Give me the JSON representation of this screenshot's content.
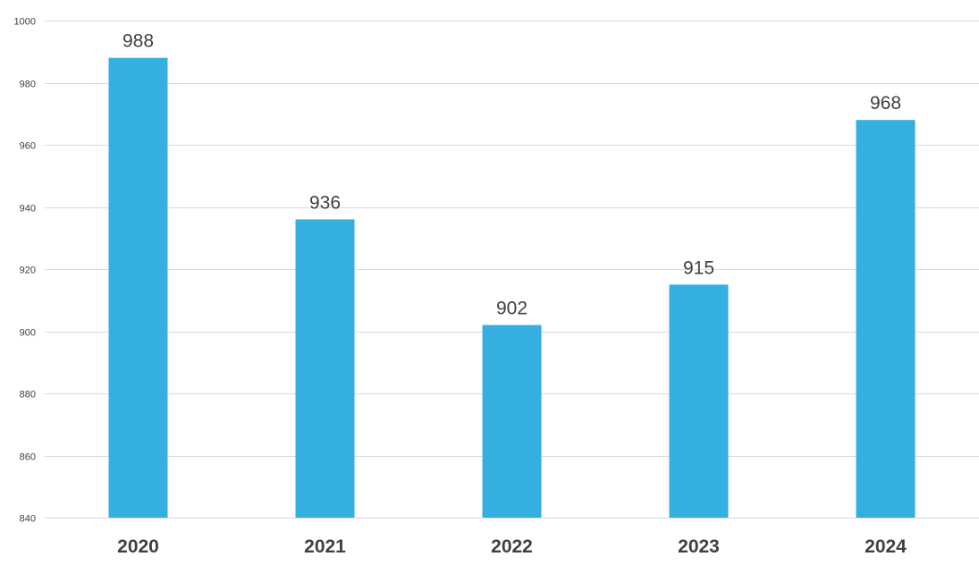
{
  "chart_data": {
    "type": "bar",
    "categories": [
      "2020",
      "2021",
      "2022",
      "2023",
      "2024"
    ],
    "values": [
      988,
      936,
      902,
      915,
      968
    ],
    "data_labels": [
      "988",
      "936",
      "902",
      "915",
      "968"
    ],
    "ylim": [
      840,
      1000
    ],
    "yticks": [
      "840",
      "860",
      "880",
      "900",
      "920",
      "940",
      "960",
      "980",
      "1000"
    ],
    "title": "",
    "xlabel": "",
    "ylabel": "",
    "grid": true,
    "legend": "none",
    "colors": {
      "bar": "#35aee0",
      "grid": "#d9d9d9",
      "text": "#404040"
    }
  }
}
